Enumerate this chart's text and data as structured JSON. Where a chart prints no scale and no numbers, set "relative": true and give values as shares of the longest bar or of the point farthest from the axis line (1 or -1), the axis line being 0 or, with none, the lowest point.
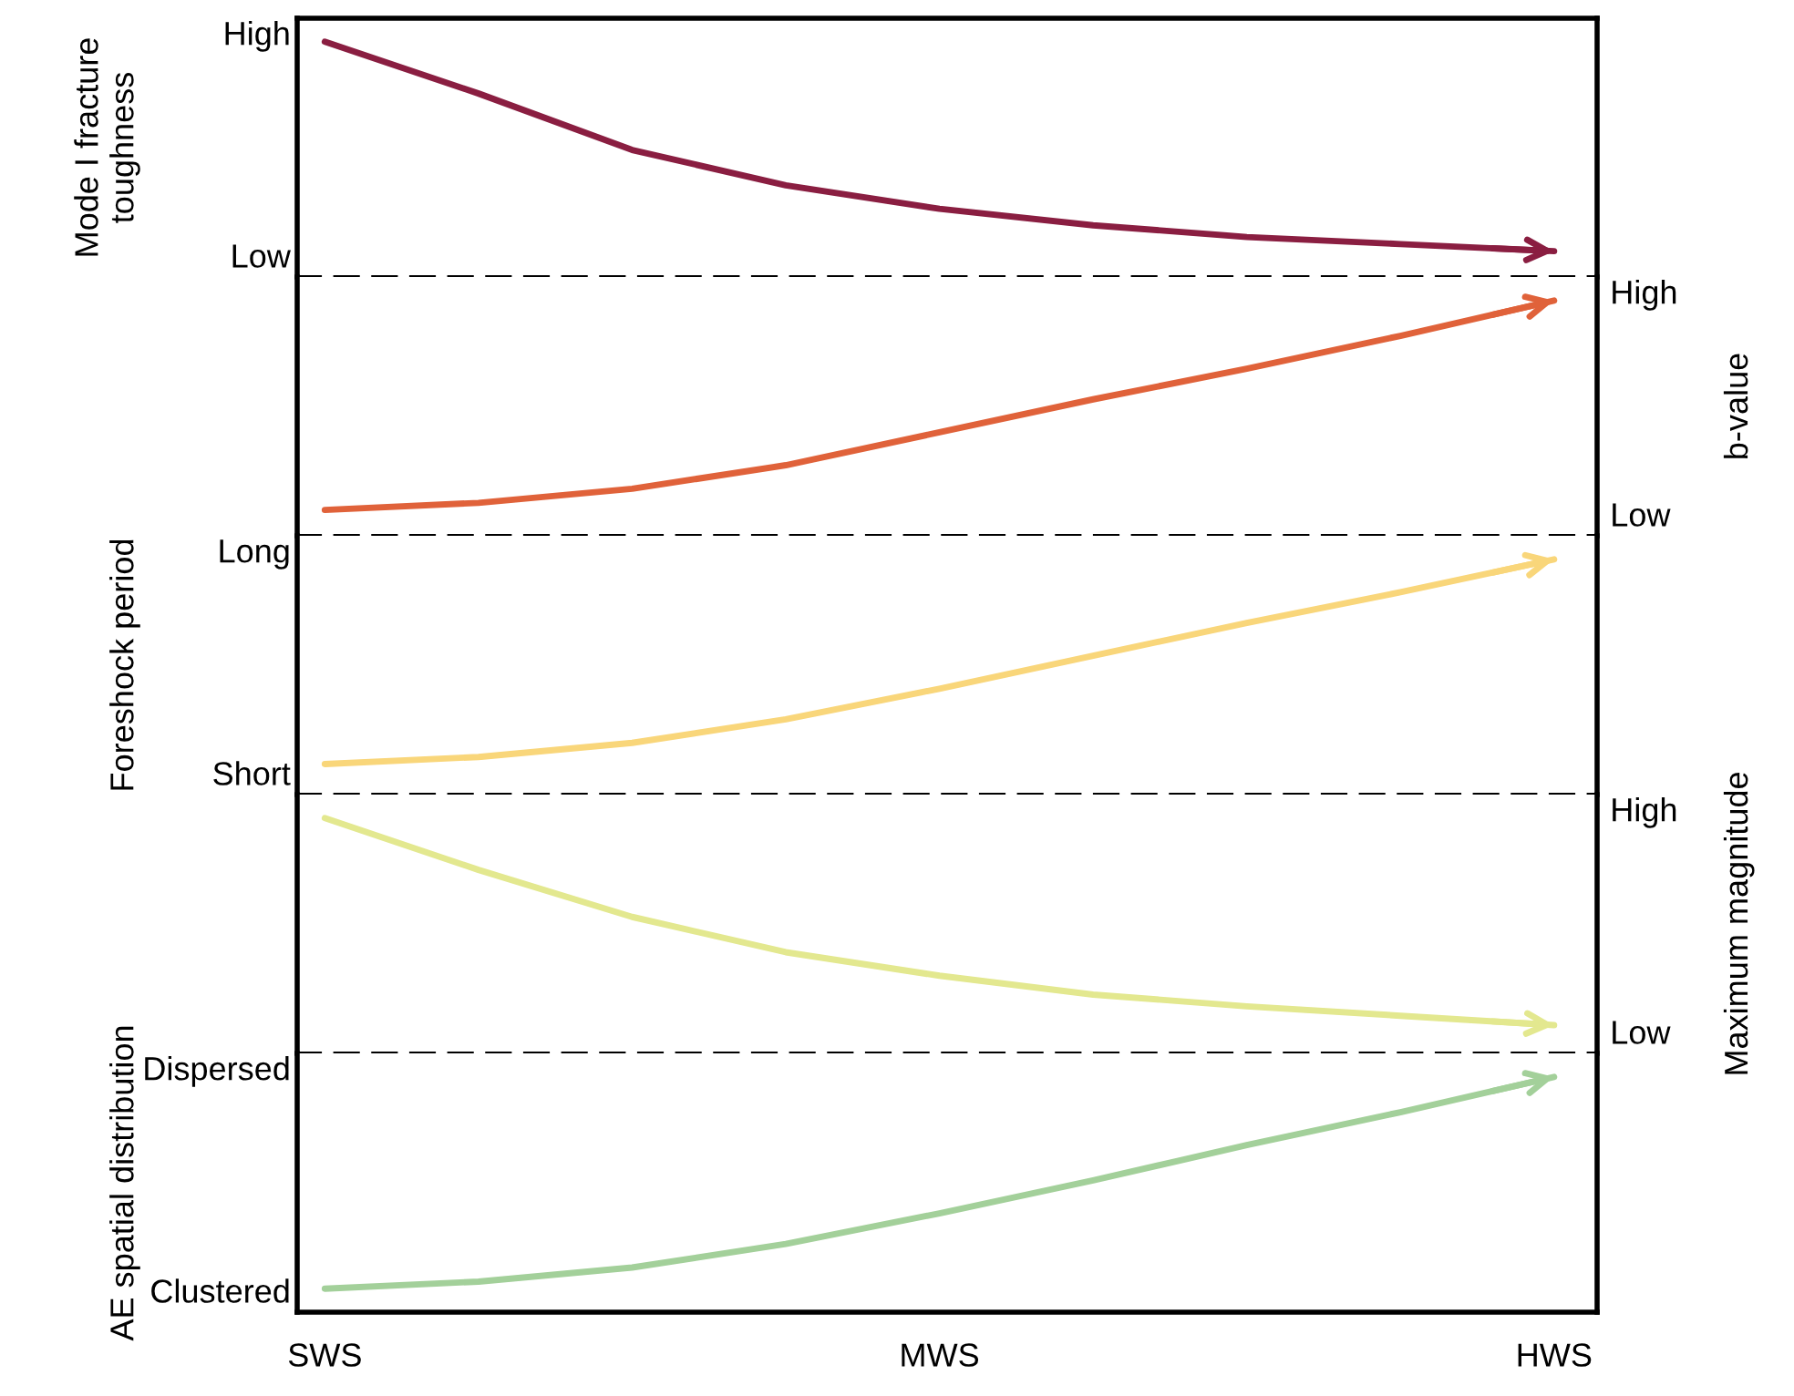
{
  "chart_data": [
    {
      "type": "line",
      "relative": true,
      "ylabel": "Mode I fracture toughness",
      "annotations": [
        "High",
        "Low"
      ],
      "categories": [
        null,
        null,
        null,
        null,
        null,
        null,
        null,
        null,
        null
      ],
      "grid": false,
      "series": [
        {
          "color": "#8a1e41",
          "values": [
            1,
            0.78,
            0.54,
            0.39,
            0.29,
            0.22,
            0.17,
            0.14,
            0.11
          ]
        }
      ]
    },
    {
      "type": "line",
      "relative": true,
      "y2label": "b-value",
      "annotations": [
        "High",
        "Low"
      ],
      "categories": [
        null,
        null,
        null,
        null,
        null,
        null,
        null,
        null,
        null
      ],
      "grid": false,
      "series": [
        {
          "color": "#e0623a",
          "values": [
            0.11,
            0.14,
            0.2,
            0.3,
            0.44,
            0.58,
            0.71,
            0.85,
            1
          ]
        }
      ]
    },
    {
      "type": "line",
      "relative": true,
      "ylabel": "Foreshock period",
      "annotations": [
        "Long",
        "Short"
      ],
      "categories": [
        null,
        null,
        null,
        null,
        null,
        null,
        null,
        null,
        null
      ],
      "grid": false,
      "series": [
        {
          "color": "#f9d67a",
          "values": [
            0.13,
            0.16,
            0.22,
            0.32,
            0.45,
            0.59,
            0.73,
            0.86,
            1
          ]
        }
      ]
    },
    {
      "type": "line",
      "relative": true,
      "y2label": "Maximum magnitude",
      "annotations": [
        "High",
        "Low"
      ],
      "categories": [
        null,
        null,
        null,
        null,
        null,
        null,
        null,
        null,
        null
      ],
      "grid": false,
      "series": [
        {
          "color": "#e3e88f",
          "values": [
            1,
            0.78,
            0.58,
            0.43,
            0.33,
            0.25,
            0.2,
            0.16,
            0.12
          ]
        }
      ]
    },
    {
      "type": "line",
      "relative": true,
      "ylabel": "AE spatial distribution",
      "annotations": [
        "Dispersed",
        "Clustered"
      ],
      "categories": [
        "SWS",
        null,
        null,
        null,
        "MWS",
        null,
        null,
        null,
        "HWS"
      ],
      "tick_labels": "x",
      "grid": false,
      "series": [
        {
          "color": "#a3d09a",
          "values": [
            0.1,
            0.13,
            0.19,
            0.29,
            0.42,
            0.56,
            0.71,
            0.85,
            1
          ]
        }
      ]
    }
  ]
}
